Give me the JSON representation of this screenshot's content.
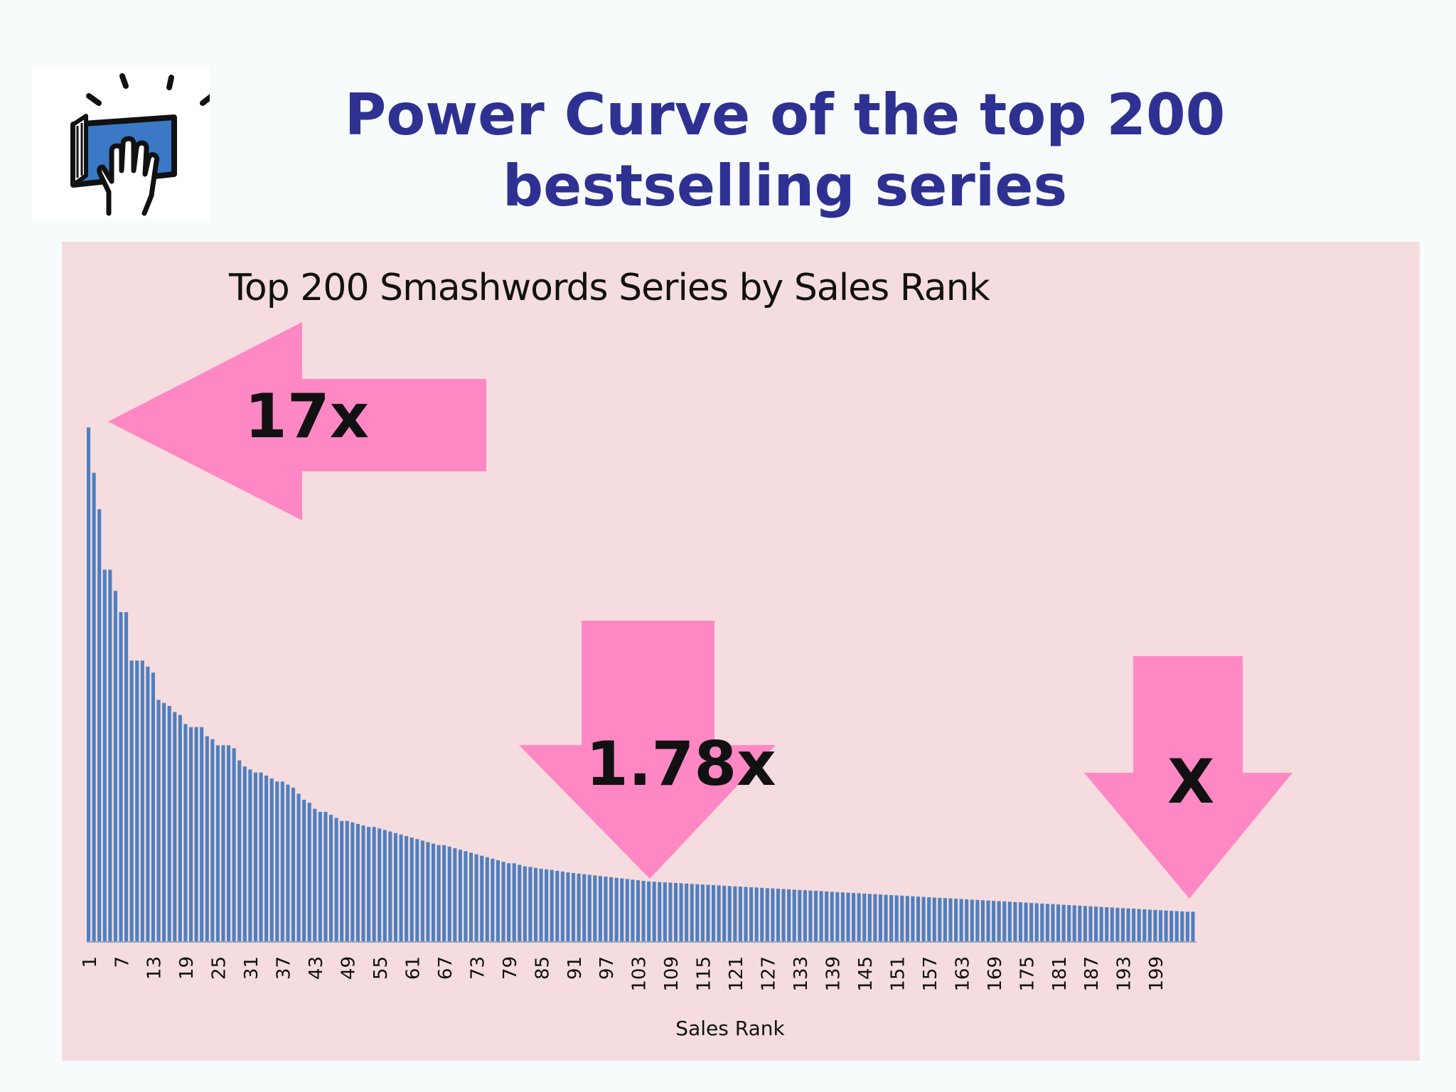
{
  "slide": {
    "title_line_1": "Power Curve of the top 200",
    "title_line_2": "bestselling series"
  },
  "logo": {
    "icon": "hand-on-book-icon"
  },
  "colors": {
    "bar": "#4f7fbf",
    "arrow": "#ff88c4",
    "panel_bg": "#f4dcdf",
    "title": "#2e3192"
  },
  "annotations": {
    "left_arrow": "17x",
    "middle_arrow": "1.78x",
    "right_arrow": "X"
  },
  "chart_data": {
    "type": "bar",
    "title": "Top 200 Smashwords Series by Sales Rank",
    "xlabel": "Sales Rank",
    "ylabel": "",
    "grid": false,
    "legend": "none",
    "ylim": [
      0,
      17.5
    ],
    "x_tick_labels": [
      "1",
      "7",
      "13",
      "19",
      "25",
      "31",
      "37",
      "43",
      "49",
      "55",
      "61",
      "67",
      "73",
      "79",
      "85",
      "91",
      "97",
      "103",
      "109",
      "115",
      "121",
      "127",
      "133",
      "139",
      "145",
      "151",
      "157",
      "163",
      "169",
      "175",
      "181",
      "187",
      "193",
      "199"
    ],
    "ranks": [
      1,
      2,
      3,
      4,
      5,
      6,
      7,
      8,
      9,
      10,
      11,
      12,
      13,
      14,
      15,
      16,
      17,
      18,
      19,
      20,
      21,
      22,
      23,
      24,
      25,
      26,
      27,
      28,
      29,
      30,
      31,
      32,
      33,
      34,
      35,
      36,
      37,
      38,
      39,
      40,
      41,
      42,
      43,
      44,
      45,
      46,
      47,
      48,
      49,
      50,
      51,
      52,
      53,
      54,
      55,
      56,
      57,
      58,
      59,
      60,
      61,
      62,
      63,
      64,
      65,
      66,
      67,
      68,
      69,
      70,
      71,
      72,
      73,
      74,
      75,
      76,
      77,
      78,
      79,
      80,
      81,
      82,
      83,
      84,
      85,
      86,
      87,
      88,
      89,
      90,
      91,
      92,
      93,
      94,
      95,
      96,
      97,
      98,
      99,
      100,
      101,
      102,
      103,
      104,
      105,
      106,
      107,
      108,
      109,
      110,
      111,
      112,
      113,
      114,
      115,
      116,
      117,
      118,
      119,
      120,
      121,
      122,
      123,
      124,
      125,
      126,
      127,
      128,
      129,
      130,
      131,
      132,
      133,
      134,
      135,
      136,
      137,
      138,
      139,
      140,
      141,
      142,
      143,
      144,
      145,
      146,
      147,
      148,
      149,
      150,
      151,
      152,
      153,
      154,
      155,
      156,
      157,
      158,
      159,
      160,
      161,
      162,
      163,
      164,
      165,
      166,
      167,
      168,
      169,
      170,
      171,
      172,
      173,
      174,
      175,
      176,
      177,
      178,
      179,
      180,
      181,
      182,
      183,
      184,
      185,
      186,
      187,
      188,
      189,
      190,
      191,
      192,
      193,
      194,
      195,
      196,
      197,
      198,
      199,
      200
    ],
    "values": [
      17.0,
      15.5,
      14.3,
      12.3,
      12.3,
      11.6,
      10.9,
      10.9,
      9.3,
      9.3,
      9.3,
      9.1,
      8.9,
      8.0,
      7.9,
      7.8,
      7.6,
      7.5,
      7.2,
      7.1,
      7.1,
      7.1,
      6.8,
      6.7,
      6.5,
      6.5,
      6.5,
      6.4,
      6.0,
      5.8,
      5.7,
      5.6,
      5.6,
      5.5,
      5.4,
      5.3,
      5.3,
      5.2,
      5.1,
      4.9,
      4.7,
      4.6,
      4.4,
      4.3,
      4.3,
      4.2,
      4.1,
      4.0,
      4.0,
      3.95,
      3.9,
      3.85,
      3.8,
      3.8,
      3.75,
      3.7,
      3.65,
      3.6,
      3.55,
      3.5,
      3.45,
      3.4,
      3.35,
      3.3,
      3.25,
      3.2,
      3.2,
      3.15,
      3.1,
      3.05,
      3.0,
      2.95,
      2.9,
      2.85,
      2.8,
      2.75,
      2.7,
      2.65,
      2.6,
      2.6,
      2.55,
      2.5,
      2.48,
      2.45,
      2.42,
      2.4,
      2.38,
      2.35,
      2.33,
      2.3,
      2.28,
      2.26,
      2.24,
      2.22,
      2.2,
      2.18,
      2.16,
      2.14,
      2.12,
      2.1,
      2.08,
      2.06,
      2.04,
      2.02,
      2.0,
      1.99,
      1.98,
      1.97,
      1.96,
      1.95,
      1.94,
      1.93,
      1.92,
      1.91,
      1.9,
      1.89,
      1.88,
      1.87,
      1.86,
      1.85,
      1.84,
      1.83,
      1.82,
      1.81,
      1.8,
      1.79,
      1.78,
      1.77,
      1.76,
      1.75,
      1.74,
      1.73,
      1.72,
      1.71,
      1.7,
      1.69,
      1.68,
      1.67,
      1.66,
      1.65,
      1.64,
      1.63,
      1.62,
      1.61,
      1.6,
      1.59,
      1.58,
      1.57,
      1.56,
      1.55,
      1.54,
      1.53,
      1.52,
      1.51,
      1.5,
      1.49,
      1.48,
      1.47,
      1.46,
      1.45,
      1.44,
      1.43,
      1.42,
      1.41,
      1.4,
      1.39,
      1.38,
      1.37,
      1.36,
      1.35,
      1.34,
      1.33,
      1.32,
      1.31,
      1.3,
      1.29,
      1.28,
      1.27,
      1.26,
      1.25,
      1.24,
      1.23,
      1.22,
      1.21,
      1.2,
      1.19,
      1.18,
      1.17,
      1.16,
      1.15,
      1.14,
      1.13,
      1.12,
      1.11,
      1.1,
      1.09,
      1.08,
      1.07,
      1.06,
      1.05,
      1.04,
      1.03,
      1.02,
      1.01,
      1.0,
      1.0
    ]
  }
}
